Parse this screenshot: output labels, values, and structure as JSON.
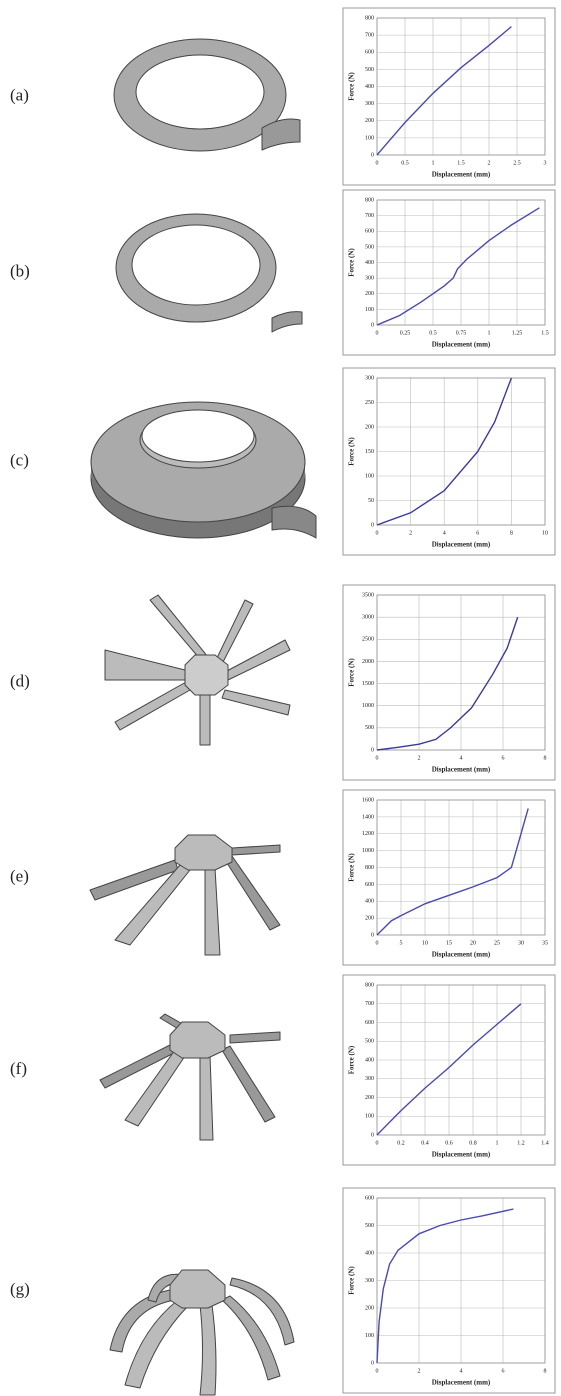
{
  "chart_data": [
    {
      "type": "line",
      "label": "(a)",
      "xlabel": "Displacement (mm)",
      "ylabel": "Force (N)",
      "color": "#4a4ab0",
      "grid": true,
      "x": [
        0,
        0.5,
        1,
        1.5,
        2,
        2.4
      ],
      "values": [
        0,
        190,
        360,
        510,
        640,
        750
      ],
      "xlim": [
        0,
        3
      ],
      "xticks": [
        0,
        0.5,
        1,
        1.5,
        2,
        2.5,
        3
      ],
      "ylim": [
        0,
        800
      ],
      "yticks": [
        0,
        100,
        200,
        300,
        400,
        500,
        600,
        700,
        800
      ]
    },
    {
      "type": "line",
      "label": "(b)",
      "xlabel": "Displacement (mm)",
      "ylabel": "Force (N)",
      "color": "#4a4ab0",
      "grid": true,
      "x": [
        0,
        0.2,
        0.4,
        0.6,
        0.68,
        0.72,
        0.8,
        1,
        1.2,
        1.45
      ],
      "values": [
        0,
        60,
        150,
        250,
        300,
        360,
        420,
        540,
        640,
        750
      ],
      "xlim": [
        0,
        1.5
      ],
      "xticks": [
        0,
        0.25,
        0.5,
        0.75,
        1,
        1.25,
        1.5
      ],
      "ylim": [
        0,
        800
      ],
      "yticks": [
        0,
        100,
        200,
        300,
        400,
        500,
        600,
        700,
        800
      ]
    },
    {
      "type": "line",
      "label": "(c)",
      "xlabel": "Displacement (mm)",
      "ylabel": "Force (N)",
      "color": "#3a3a9a",
      "grid": true,
      "x": [
        0,
        2,
        4,
        6,
        7,
        8
      ],
      "values": [
        0,
        25,
        70,
        150,
        210,
        300
      ],
      "xlim": [
        0,
        10
      ],
      "xticks": [
        0,
        2,
        4,
        6,
        8,
        10
      ],
      "ylim": [
        0,
        300
      ],
      "yticks": [
        0,
        50,
        100,
        150,
        200,
        250,
        300
      ]
    },
    {
      "type": "line",
      "label": "(d)",
      "xlabel": "Displacement (mm)",
      "ylabel": "Force (N)",
      "color": "#3a3a9a",
      "grid": true,
      "x": [
        0,
        1,
        2,
        2.8,
        3.5,
        4.5,
        5.5,
        6.2,
        6.7
      ],
      "values": [
        0,
        60,
        130,
        240,
        500,
        950,
        1700,
        2300,
        3000
      ],
      "xlim": [
        0,
        8
      ],
      "xticks": [
        0,
        2,
        4,
        6,
        8
      ],
      "ylim": [
        0,
        3500
      ],
      "yticks": [
        0,
        500,
        1000,
        1500,
        2000,
        2500,
        3000,
        3500
      ]
    },
    {
      "type": "line",
      "label": "(e)",
      "xlabel": "Displacement (mm)",
      "ylabel": "Force (N)",
      "color": "#4a4ab0",
      "grid": true,
      "x": [
        0,
        3,
        5,
        10,
        15,
        20,
        25,
        28,
        29.5,
        31.5
      ],
      "values": [
        0,
        170,
        230,
        370,
        470,
        570,
        680,
        800,
        1100,
        1500
      ],
      "xlim": [
        0,
        35
      ],
      "xticks": [
        0,
        5,
        10,
        15,
        20,
        25,
        30,
        35
      ],
      "ylim": [
        0,
        1600
      ],
      "yticks": [
        0,
        200,
        400,
        600,
        800,
        1000,
        1200,
        1400,
        1600
      ]
    },
    {
      "type": "line",
      "label": "(f)",
      "xlabel": "Displacement (mm)",
      "ylabel": "Force (N)",
      "color": "#4a4ab0",
      "grid": true,
      "x": [
        0,
        0.2,
        0.4,
        0.6,
        0.8,
        1,
        1.2
      ],
      "values": [
        0,
        130,
        250,
        360,
        480,
        590,
        700
      ],
      "xlim": [
        0,
        1.4
      ],
      "xticks": [
        0,
        0.2,
        0.4,
        0.6,
        0.8,
        1,
        1.2,
        1.4
      ],
      "ylim": [
        0,
        800
      ],
      "yticks": [
        0,
        100,
        200,
        300,
        400,
        500,
        600,
        700,
        800
      ]
    },
    {
      "type": "line",
      "label": "(g)",
      "xlabel": "Displacement (mm)",
      "ylabel": "Force (N)",
      "color": "#4a4ab0",
      "grid": true,
      "x": [
        0,
        0.1,
        0.3,
        0.6,
        1,
        2,
        3,
        4,
        5,
        6.5
      ],
      "values": [
        0,
        150,
        270,
        360,
        410,
        470,
        500,
        520,
        535,
        560
      ],
      "xlim": [
        0,
        8
      ],
      "xticks": [
        0,
        2,
        4,
        6,
        8
      ],
      "ylim": [
        0,
        600
      ],
      "yticks": [
        0,
        100,
        200,
        300,
        400,
        500,
        600
      ]
    }
  ]
}
